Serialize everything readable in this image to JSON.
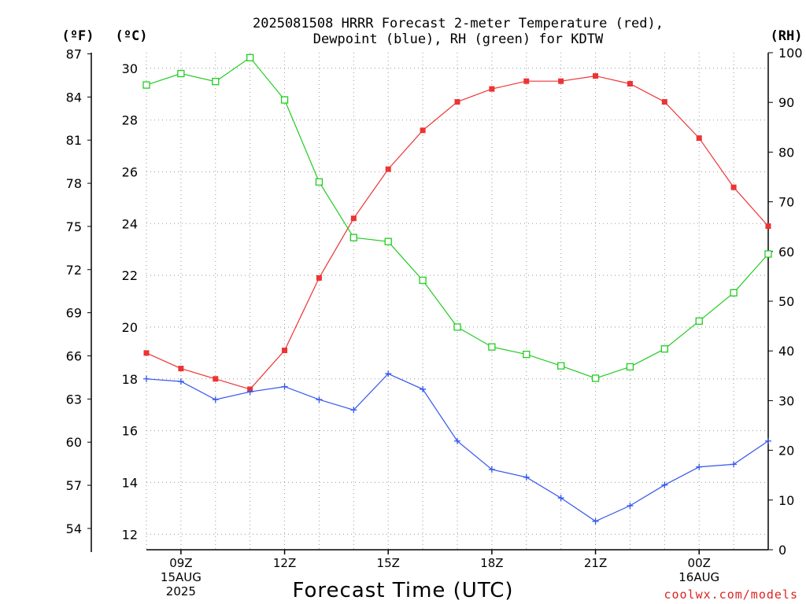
{
  "chart_data": {
    "type": "line",
    "title_lines": [
      "2025081508 HRRR Forecast 2-meter Temperature (red),",
      "Dewpoint (blue), RH (green) for KDTW"
    ],
    "xlabel": "Forecast Time (UTC)",
    "credit": "coolwx.com/models",
    "axes": {
      "fahrenheit": {
        "unit_label": "(ºF)",
        "ticks": [
          54,
          57,
          60,
          63,
          66,
          69,
          72,
          75,
          78,
          81,
          84,
          87
        ]
      },
      "celsius": {
        "unit_label": "(ºC)",
        "range": [
          11.4,
          30.6
        ],
        "ticks": [
          12,
          14,
          16,
          18,
          20,
          22,
          24,
          26,
          28,
          30
        ]
      },
      "rh": {
        "unit_label": "(RH)",
        "range": [
          0,
          100
        ],
        "ticks": [
          0,
          10,
          20,
          30,
          40,
          50,
          60,
          70,
          80,
          90,
          100
        ]
      }
    },
    "x_hours": [
      8,
      9,
      10,
      11,
      12,
      13,
      14,
      15,
      16,
      17,
      18,
      19,
      20,
      21,
      22,
      23,
      24,
      25,
      26
    ],
    "x_ticks": [
      {
        "hour": 9,
        "lines": [
          "09Z",
          "15AUG",
          "2025"
        ]
      },
      {
        "hour": 12,
        "lines": [
          "12Z"
        ]
      },
      {
        "hour": 15,
        "lines": [
          "15Z"
        ]
      },
      {
        "hour": 18,
        "lines": [
          "18Z"
        ]
      },
      {
        "hour": 21,
        "lines": [
          "21Z"
        ]
      },
      {
        "hour": 24,
        "lines": [
          "00Z",
          "16AUG"
        ]
      }
    ],
    "grid": true,
    "series": [
      {
        "name": "Temperature",
        "axis": "celsius",
        "color": "#ee3333",
        "marker": "filled-square",
        "values": [
          19.0,
          18.4,
          18.0,
          17.6,
          19.1,
          21.9,
          24.2,
          26.1,
          27.6,
          28.7,
          29.2,
          29.5,
          29.5,
          29.7,
          29.4,
          28.7,
          27.3,
          25.4,
          23.9
        ]
      },
      {
        "name": "Dewpoint",
        "axis": "celsius",
        "color": "#3355ee",
        "marker": "plus",
        "values": [
          18.0,
          17.9,
          17.2,
          17.5,
          17.7,
          17.2,
          16.8,
          18.2,
          17.6,
          15.6,
          14.5,
          14.2,
          13.4,
          12.5,
          13.1,
          13.9,
          14.6,
          14.7,
          15.6
        ]
      },
      {
        "name": "RH",
        "axis": "rh",
        "color": "#22cc22",
        "marker": "open-square",
        "values": [
          93.5,
          95.8,
          94.2,
          99.0,
          90.5,
          74.0,
          62.8,
          62.0,
          54.2,
          44.8,
          40.8,
          39.3,
          37.0,
          34.5,
          36.8,
          40.4,
          46.0,
          51.7,
          59.5
        ]
      }
    ]
  }
}
